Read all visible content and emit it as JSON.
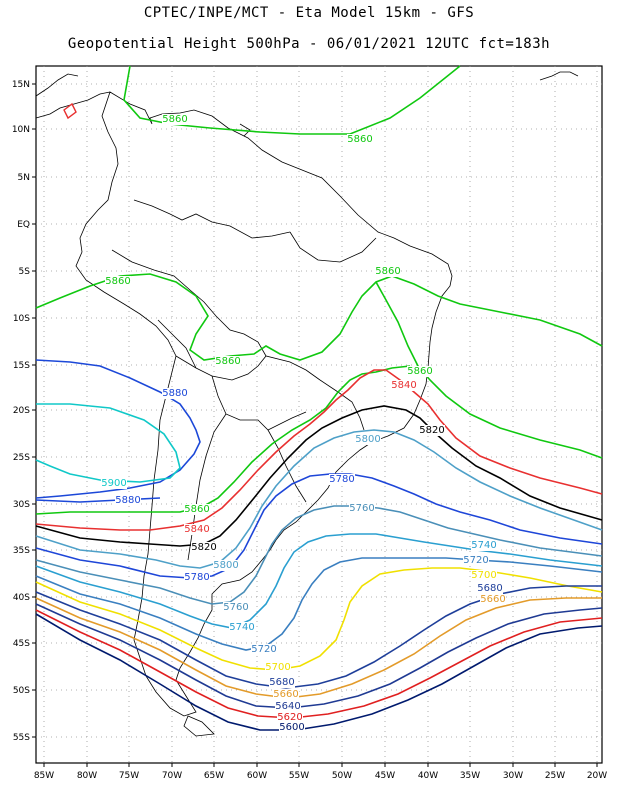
{
  "title_line1": "CPTEC/INPE/MCT  -   Eta Model 15km  -  GFS",
  "title_line2": "Geopotential Height 500hPa  - 06/01/2021 12UTC fct=183h",
  "lat_labels": [
    "15N",
    "10N",
    "5N",
    "EQ",
    "5S",
    "10S",
    "15S",
    "20S",
    "25S",
    "30S",
    "35S",
    "40S",
    "45S",
    "50S",
    "55S"
  ],
  "lon_labels": [
    "85W",
    "80W",
    "75W",
    "70W",
    "65W",
    "60W",
    "55W",
    "50W",
    "45W",
    "40W",
    "35W",
    "30W",
    "25W",
    "20W"
  ],
  "contour_colors": {
    "5600": "#001a6e",
    "5620": "#e02020",
    "5640": "#1f3a93",
    "5660": "#e39b2a",
    "5680": "#1f3f9a",
    "5700": "#f0e000",
    "5720": "#3a7fc0",
    "5740": "#2a9fd0",
    "5760": "#4a8fb8",
    "5780": "#1e46d8",
    "5800": "#4ea0c8",
    "5820": "#000000",
    "5840": "#e83030",
    "5860": "#10c810",
    "5880": "#1c48d8",
    "5900": "#10c8c8"
  },
  "contour_labels": [
    {
      "text": "5860",
      "color": "5860"
    },
    {
      "text": "5860",
      "color": "5860"
    },
    {
      "text": "5860",
      "color": "5860"
    },
    {
      "text": "5860",
      "color": "5860"
    },
    {
      "text": "5860",
      "color": "5860"
    },
    {
      "text": "5860",
      "color": "5860"
    },
    {
      "text": "5860",
      "color": "5860"
    },
    {
      "text": "5880",
      "color": "5880"
    },
    {
      "text": "5880",
      "color": "5880"
    },
    {
      "text": "5900",
      "color": "5900"
    },
    {
      "text": "5840",
      "color": "5840"
    },
    {
      "text": "5840",
      "color": "5840"
    },
    {
      "text": "5820",
      "color": "5820"
    },
    {
      "text": "5820",
      "color": "5820"
    },
    {
      "text": "5800",
      "color": "5800"
    },
    {
      "text": "5800",
      "color": "5800"
    },
    {
      "text": "5780",
      "color": "5780"
    },
    {
      "text": "5780",
      "color": "5780"
    },
    {
      "text": "5760",
      "color": "5760"
    },
    {
      "text": "5760",
      "color": "5760"
    },
    {
      "text": "5740",
      "color": "5740"
    },
    {
      "text": "5740",
      "color": "5740"
    },
    {
      "text": "5720",
      "color": "5720"
    },
    {
      "text": "5720",
      "color": "5720"
    },
    {
      "text": "5700",
      "color": "5700"
    },
    {
      "text": "5700",
      "color": "5700"
    },
    {
      "text": "5680",
      "color": "5680"
    },
    {
      "text": "5680",
      "color": "5680"
    },
    {
      "text": "5660",
      "color": "5660"
    },
    {
      "text": "5660",
      "color": "5660"
    },
    {
      "text": "5640",
      "color": "5640"
    },
    {
      "text": "5620",
      "color": "5620"
    },
    {
      "text": "5600",
      "color": "5600"
    }
  ]
}
